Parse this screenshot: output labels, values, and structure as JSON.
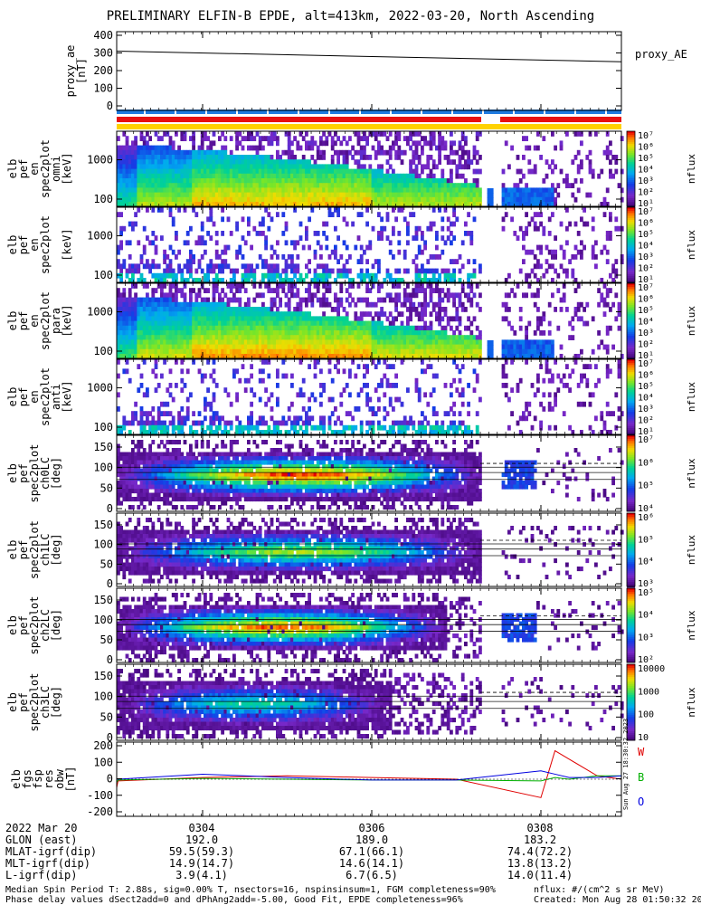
{
  "title": "PRELIMINARY ELFIN-B EPDE, alt=413km, 2022-03-20, North Ascending",
  "panels": [
    {
      "type": "line",
      "ylabel": [
        "proxy_ae",
        "[nT]"
      ],
      "ticks": [
        "400",
        "300",
        "200",
        "100",
        "0"
      ],
      "ylim": [
        0,
        400
      ],
      "legend": "proxy_AE"
    },
    {
      "type": "spectrogram",
      "ylabel": [
        "elb",
        "pef",
        "en",
        "spec2plot",
        "omni",
        "[keV]"
      ],
      "ticks": [
        "1000",
        "100"
      ],
      "cbar_label": "nflux",
      "cbar_ticks": [
        "10⁷",
        "10⁶",
        "10⁵",
        "10⁴",
        "10³",
        "10²",
        "10¹"
      ]
    },
    {
      "type": "spectrogram",
      "ylabel": [
        "elb",
        "pef",
        "en",
        "spec2plot",
        "",
        "[keV]"
      ],
      "ticks": [
        "1000",
        "100"
      ],
      "cbar_label": "nflux",
      "cbar_ticks": [
        "10⁷",
        "10⁶",
        "10⁵",
        "10⁴",
        "10³",
        "10²",
        "10¹"
      ]
    },
    {
      "type": "spectrogram",
      "ylabel": [
        "elb",
        "pef",
        "en",
        "spec2plot",
        "para",
        "[keV]"
      ],
      "ticks": [
        "1000",
        "100"
      ],
      "cbar_label": "nflux",
      "cbar_ticks": [
        "10⁷",
        "10⁶",
        "10⁵",
        "10⁴",
        "10³",
        "10²",
        "10¹"
      ]
    },
    {
      "type": "spectrogram",
      "ylabel": [
        "elb",
        "pef",
        "en",
        "spec2plot",
        "anti",
        "[keV]"
      ],
      "ticks": [
        "1000",
        "100"
      ],
      "cbar_label": "nflux",
      "cbar_ticks": [
        "10⁷",
        "10⁶",
        "10⁵",
        "10⁴",
        "10³",
        "10²",
        "10¹"
      ]
    },
    {
      "type": "pitch",
      "ylabel": [
        "elb",
        "pef",
        "spec2plot",
        "ch0LC",
        "[deg]"
      ],
      "ticks": [
        "150",
        "100",
        "50",
        "0"
      ],
      "cbar_label": "nflux",
      "cbar_ticks": [
        "10⁷",
        "10⁶",
        "10⁵",
        "10⁴"
      ]
    },
    {
      "type": "pitch",
      "ylabel": [
        "elb",
        "pef",
        "spec2plot",
        "ch1LC",
        "[deg]"
      ],
      "ticks": [
        "150",
        "100",
        "50",
        "0"
      ],
      "cbar_label": "nflux",
      "cbar_ticks": [
        "10⁶",
        "10⁵",
        "10⁴",
        "10³"
      ]
    },
    {
      "type": "pitch",
      "ylabel": [
        "elb",
        "pef",
        "spec2plot",
        "ch2LC",
        "[deg]"
      ],
      "ticks": [
        "150",
        "100",
        "50",
        "0"
      ],
      "cbar_label": "nflux",
      "cbar_ticks": [
        "10⁵",
        "10⁴",
        "10³",
        "10²"
      ]
    },
    {
      "type": "pitch",
      "ylabel": [
        "elb",
        "pef",
        "spec2plot",
        "ch3LC",
        "[deg]"
      ],
      "ticks": [
        "150",
        "100",
        "50",
        "0"
      ],
      "cbar_label": "nflux",
      "cbar_ticks": [
        "10000",
        "1000",
        "100",
        "10"
      ]
    },
    {
      "type": "line",
      "ylabel": [
        "elb",
        "fgs",
        "fsp",
        "res",
        "obw",
        "[nT]"
      ],
      "ticks": [
        "200",
        "100",
        "0",
        "-100",
        "-200"
      ],
      "ylim": [
        -200,
        200
      ],
      "legend_items": [
        "W",
        "B",
        "O"
      ]
    }
  ],
  "colors": {
    "W": "#e00000",
    "B": "#00b000",
    "O": "#0000e0",
    "axis": "#000000"
  },
  "x_axis": {
    "ticks": [
      "0304",
      "0306",
      "0308"
    ]
  },
  "ephemeris": {
    "date": "2022 Mar 20",
    "rows": [
      {
        "label": "GLON (east)",
        "values": [
          "192.0",
          "189.0",
          "183.2"
        ]
      },
      {
        "label": "MLAT-igrf(dip)",
        "values": [
          "59.5(59.3)",
          "67.1(66.1)",
          "74.4(72.2)"
        ]
      },
      {
        "label": "MLT-igrf(dip)",
        "values": [
          "14.9(14.7)",
          "14.6(14.1)",
          "13.8(13.2)"
        ]
      },
      {
        "label": "L-igrf(dip)",
        "values": [
          "3.9(4.1)",
          "6.7(6.5)",
          "14.0(11.4)"
        ]
      }
    ]
  },
  "footer": {
    "line1": "Median Spin Period T: 2.88s, sig=0.00% T, nsectors=16, nspinsinsum=1, FGM completeness=90%",
    "line2": "Phase delay values dSect2add=0 and dPhAng2add=-5.00, Good Fit, EPDE completeness=96%",
    "units": "nflux: #/(cm^2 s sr MeV)",
    "created": "Created: Mon Aug 28 01:50:32 2023",
    "side_stamp": "Sun Aug 27 18:30:32 2023"
  },
  "chart_data": [
    {
      "type": "line",
      "name": "proxy_AE",
      "x": [
        "0302",
        "0309"
      ],
      "y": [
        310,
        250
      ],
      "ylim": [
        0,
        400
      ]
    },
    {
      "type": "line",
      "name": "elb_fgs_fsp_res_obw",
      "ylim": [
        -200,
        200
      ],
      "x": [
        "0302",
        "0303",
        "0304",
        "0305",
        "0306",
        "0307",
        "0308:00",
        "0308:10",
        "0308:20",
        "0308:40",
        "0309"
      ],
      "series": [
        {
          "name": "W",
          "values": [
            -50,
            -10,
            10,
            20,
            10,
            0,
            -110,
            170,
            120,
            20,
            0
          ]
        },
        {
          "name": "B",
          "values": [
            -20,
            -5,
            5,
            0,
            -5,
            -5,
            -10,
            10,
            0,
            20,
            20
          ]
        },
        {
          "name": "O",
          "values": [
            0,
            0,
            30,
            10,
            -5,
            -5,
            50,
            30,
            10,
            10,
            20
          ]
        }
      ]
    }
  ]
}
